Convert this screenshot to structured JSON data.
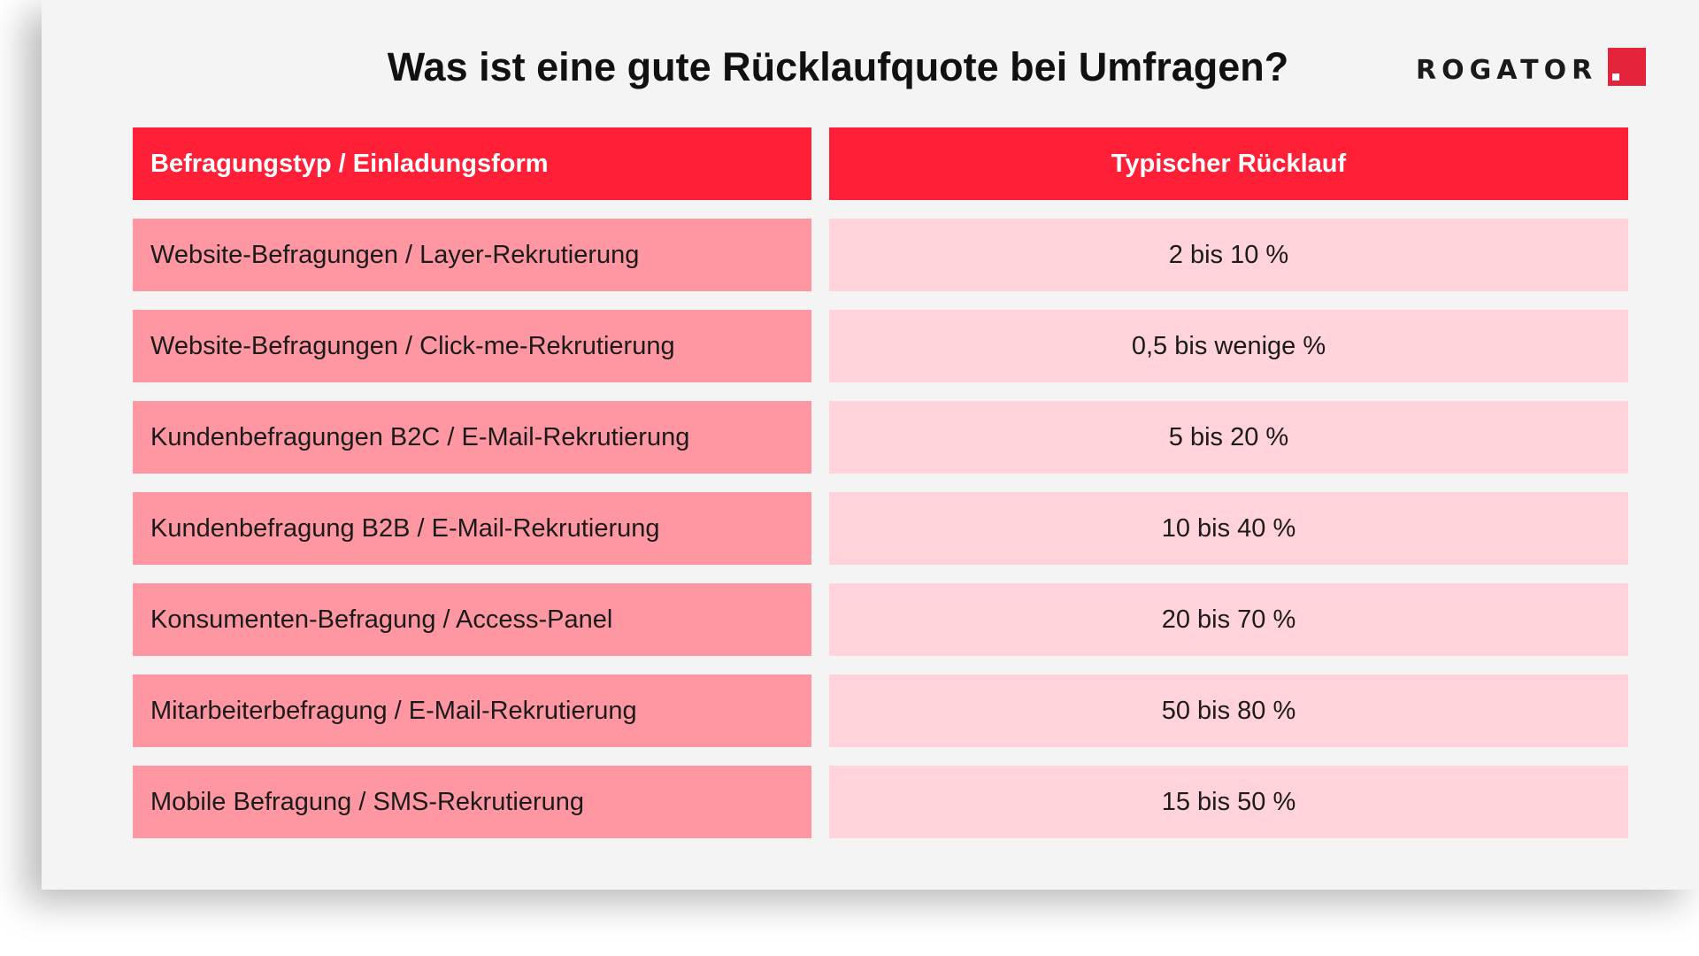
{
  "title": "Was ist eine gute Rücklaufquote bei Umfragen?",
  "logo": {
    "text": "ROGATOR",
    "accent_color": "#e3243b"
  },
  "colors": {
    "header_bg": "#ff2038",
    "left_cell_bg": "#ff97a2",
    "right_cell_bg": "#ffd3d9",
    "background": "#f4f4f4"
  },
  "table": {
    "headers": [
      "Befragungstyp / Einladungsform",
      "Typischer Rücklauf"
    ],
    "rows": [
      [
        "Website-Befragungen / Layer-Rekrutierung",
        "2 bis 10 %"
      ],
      [
        "Website-Befragungen / Click-me-Rekrutierung",
        "0,5 bis wenige %"
      ],
      [
        "Kundenbefragungen B2C / E-Mail-Rekrutierung",
        "5 bis 20 %"
      ],
      [
        "Kundenbefragung B2B / E-Mail-Rekrutierung",
        "10 bis 40 %"
      ],
      [
        "Konsumenten-Befragung / Access-Panel",
        "20 bis 70 %"
      ],
      [
        "Mitarbeiterbefragung / E-Mail-Rekrutierung",
        "50 bis 80 %"
      ],
      [
        "Mobile Befragung / SMS-Rekrutierung",
        "15 bis 50 %"
      ]
    ]
  }
}
